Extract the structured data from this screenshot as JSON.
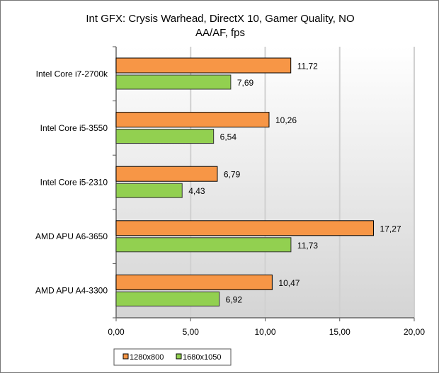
{
  "chart_data": {
    "type": "bar",
    "orientation": "horizontal",
    "title": "Int GFX: Crysis Warhead, DirectX 10, Gamer Quality, NO AA/AF, fps",
    "title_lines": [
      "Int GFX: Crysis Warhead, DirectX 10, Gamer Quality, NO",
      "AA/AF, fps"
    ],
    "categories": [
      "Intel Core i7-2700k",
      "Intel Core i5-3550",
      "Intel Core i5-2310",
      "AMD APU A6-3650",
      "AMD APU A4-3300"
    ],
    "series": [
      {
        "name": "1280x800",
        "color": "#F79646",
        "values": [
          11.72,
          10.26,
          6.79,
          17.27,
          10.47
        ],
        "labels": [
          "11,72",
          "10,26",
          "6,79",
          "17,27",
          "10,47"
        ]
      },
      {
        "name": "1680x1050",
        "color": "#92D050",
        "values": [
          7.69,
          6.54,
          4.43,
          11.73,
          6.92
        ],
        "labels": [
          "7,69",
          "6,54",
          "4,43",
          "11,73",
          "6,92"
        ]
      }
    ],
    "xlim": [
      0,
      20
    ],
    "xticks": [
      "0,00",
      "5,00",
      "10,00",
      "15,00",
      "20,00"
    ],
    "grid": true,
    "legend": "bottom-left"
  }
}
